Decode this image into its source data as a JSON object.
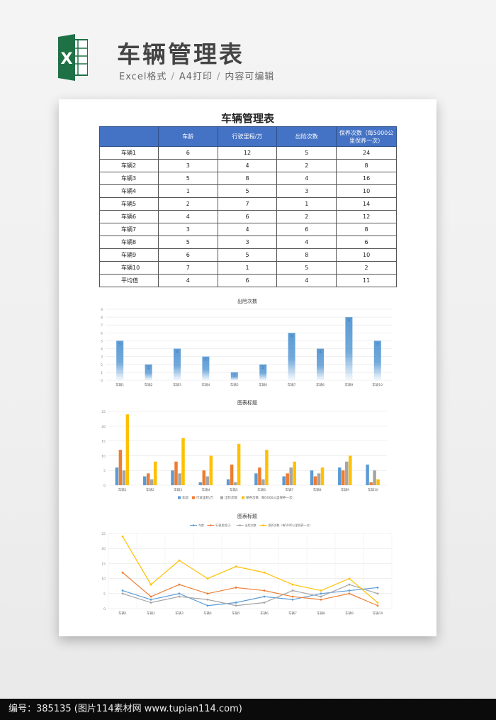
{
  "header": {
    "title": "车辆管理表",
    "sub_items": [
      "Excel格式",
      "A4打印",
      "内容可编辑"
    ],
    "sep": "/",
    "logo_letter": "X"
  },
  "sheet": {
    "title": "车辆管理表",
    "columns": [
      "",
      "车龄",
      "行驶里程/万",
      "出险次数",
      "保养次数（每5000公里保养一次）"
    ],
    "rows": [
      [
        "车辆1",
        "6",
        "12",
        "5",
        "24"
      ],
      [
        "车辆2",
        "3",
        "4",
        "2",
        "8"
      ],
      [
        "车辆3",
        "5",
        "8",
        "4",
        "16"
      ],
      [
        "车辆4",
        "1",
        "5",
        "3",
        "10"
      ],
      [
        "车辆5",
        "2",
        "7",
        "1",
        "14"
      ],
      [
        "车辆6",
        "4",
        "6",
        "2",
        "12"
      ],
      [
        "车辆7",
        "3",
        "4",
        "6",
        "8"
      ],
      [
        "车辆8",
        "5",
        "3",
        "4",
        "6"
      ],
      [
        "车辆9",
        "6",
        "5",
        "8",
        "10"
      ],
      [
        "车辆10",
        "7",
        "1",
        "5",
        "2"
      ],
      [
        "平均值",
        "4",
        "6",
        "4",
        "11"
      ]
    ]
  },
  "chart_data": [
    {
      "type": "bar",
      "title": "出险次数",
      "categories": [
        "车辆1",
        "车辆2",
        "车辆3",
        "车辆4",
        "车辆5",
        "车辆6",
        "车辆7",
        "车辆8",
        "车辆9",
        "车辆10"
      ],
      "values": [
        5,
        2,
        4,
        3,
        1,
        2,
        6,
        4,
        8,
        5
      ],
      "ylim": [
        0,
        9
      ],
      "yticks": [
        0,
        1,
        2,
        3,
        4,
        5,
        6,
        7,
        8,
        9
      ],
      "color": "#5b9bd5"
    },
    {
      "type": "bar",
      "title": "图表标题",
      "categories": [
        "车辆1",
        "车辆2",
        "车辆3",
        "车辆4",
        "车辆5",
        "车辆6",
        "车辆7",
        "车辆8",
        "车辆9",
        "车辆10"
      ],
      "series": [
        {
          "name": "车龄",
          "color": "#5b9bd5",
          "values": [
            6,
            3,
            5,
            1,
            2,
            4,
            3,
            5,
            6,
            7
          ]
        },
        {
          "name": "行驶里程/万",
          "color": "#ed7d31",
          "values": [
            12,
            4,
            8,
            5,
            7,
            6,
            4,
            3,
            5,
            1
          ]
        },
        {
          "name": "出险次数",
          "color": "#a5a5a5",
          "values": [
            5,
            2,
            4,
            3,
            1,
            2,
            6,
            4,
            8,
            5
          ]
        },
        {
          "name": "保养次数（每5000公里保养一次）",
          "color": "#ffc000",
          "values": [
            24,
            8,
            16,
            10,
            14,
            12,
            8,
            6,
            10,
            2
          ]
        }
      ],
      "ylim": [
        0,
        25
      ],
      "yticks": [
        0,
        5,
        10,
        15,
        20,
        25
      ],
      "legend": "bottom"
    },
    {
      "type": "line",
      "title": "图表标题",
      "categories": [
        "车辆1",
        "车辆2",
        "车辆3",
        "车辆4",
        "车辆5",
        "车辆6",
        "车辆7",
        "车辆8",
        "车辆9",
        "车辆10"
      ],
      "series": [
        {
          "name": "车龄",
          "color": "#5b9bd5",
          "values": [
            6,
            3,
            5,
            1,
            2,
            4,
            3,
            5,
            6,
            7
          ]
        },
        {
          "name": "行驶里程/万",
          "color": "#ed7d31",
          "values": [
            12,
            4,
            8,
            5,
            7,
            6,
            4,
            3,
            5,
            1
          ]
        },
        {
          "name": "出险次数",
          "color": "#a5a5a5",
          "values": [
            5,
            2,
            4,
            3,
            1,
            2,
            6,
            4,
            8,
            5
          ]
        },
        {
          "name": "保养次数（每5000公里保养一次）",
          "color": "#ffc000",
          "values": [
            24,
            8,
            16,
            10,
            14,
            12,
            8,
            6,
            10,
            2
          ]
        }
      ],
      "ylim": [
        0,
        25
      ],
      "yticks": [
        0,
        5,
        10,
        15,
        20,
        25
      ],
      "legend": "top"
    }
  ],
  "footer": {
    "text": "编号：385135 (图片114素材网 www.tupian114.com)"
  }
}
